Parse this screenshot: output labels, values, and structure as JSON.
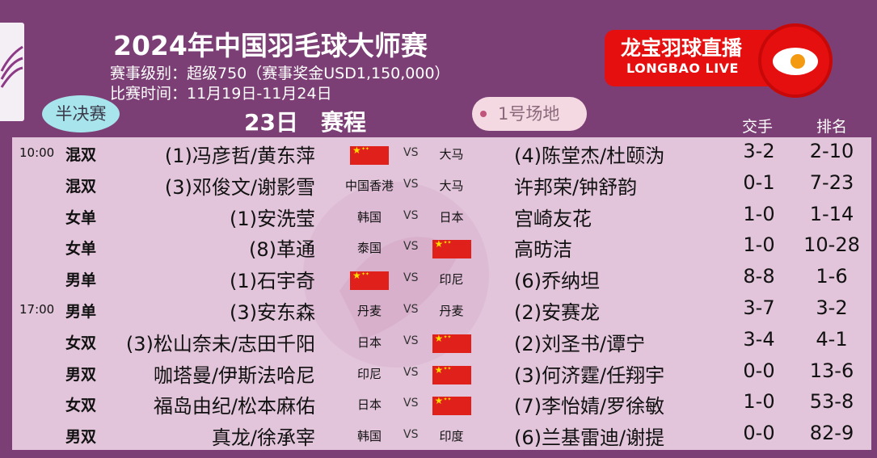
{
  "header": {
    "title": "2024年中国羽毛球大师赛",
    "level_line": "赛事级别：超级750（赛事奖金USD1,150,000）",
    "date_line": "比赛时间：11月19日-11月24日"
  },
  "brand": {
    "cn": "龙宝羽球直播",
    "en": "LONGBAO LIVE",
    "color": "#e60f0f"
  },
  "round_badge": "半决赛",
  "day_title": "23日　赛程",
  "court": "1号场地",
  "columns": {
    "h2h": "交手",
    "rank": "排名"
  },
  "colors": {
    "background": "#7c3f75",
    "panel": "#e2c5da",
    "round_badge": "#a8e4ec",
    "court_badge": "#f4d9e3"
  },
  "matches": [
    {
      "time": "10:00",
      "event": "混双",
      "player1": "(1)冯彦哲/黄东萍",
      "country1": "",
      "flag1": true,
      "vs": "VS",
      "country2": "大马",
      "flag2": false,
      "player2": "(4)陈堂杰/杜颐沩",
      "h2h": "3-2",
      "rank": "2-10"
    },
    {
      "time": "",
      "event": "混双",
      "player1": "(3)邓俊文/谢影雪",
      "country1": "中国香港",
      "flag1": false,
      "vs": "VS",
      "country2": "大马",
      "flag2": false,
      "player2": "许邦荣/钟舒韵",
      "h2h": "0-1",
      "rank": "7-23"
    },
    {
      "time": "",
      "event": "女单",
      "player1": "(1)安洗莹",
      "country1": "韩国",
      "flag1": false,
      "vs": "VS",
      "country2": "日本",
      "flag2": false,
      "player2": "宫崎友花",
      "h2h": "1-0",
      "rank": "1-14"
    },
    {
      "time": "",
      "event": "女单",
      "player1": "(8)革通",
      "country1": "泰国",
      "flag1": false,
      "vs": "VS",
      "country2": "",
      "flag2": true,
      "player2": "高昉洁",
      "h2h": "1-0",
      "rank": "10-28"
    },
    {
      "time": "",
      "event": "男单",
      "player1": "(1)石宇奇",
      "country1": "",
      "flag1": true,
      "vs": "VS",
      "country2": "印尼",
      "flag2": false,
      "player2": "(6)乔纳坦",
      "h2h": "8-8",
      "rank": "1-6"
    },
    {
      "time": "17:00",
      "event": "男单",
      "player1": "(3)安东森",
      "country1": "丹麦",
      "flag1": false,
      "vs": "VS",
      "country2": "丹麦",
      "flag2": false,
      "player2": "(2)安赛龙",
      "h2h": "3-7",
      "rank": "3-2"
    },
    {
      "time": "",
      "event": "女双",
      "player1": "(3)松山奈未/志田千阳",
      "country1": "日本",
      "flag1": false,
      "vs": "VS",
      "country2": "",
      "flag2": true,
      "player2": "(2)刘圣书/谭宁",
      "h2h": "3-4",
      "rank": "4-1"
    },
    {
      "time": "",
      "event": "男双",
      "player1": "咖塔曼/伊斯法哈尼",
      "country1": "印尼",
      "flag1": false,
      "vs": "VS",
      "country2": "",
      "flag2": true,
      "player2": "(3)何济霆/任翔宇",
      "h2h": "0-0",
      "rank": "13-6"
    },
    {
      "time": "",
      "event": "女双",
      "player1": "福岛由纪/松本麻佑",
      "country1": "日本",
      "flag1": false,
      "vs": "VS",
      "country2": "",
      "flag2": true,
      "player2": "(7)李怡婧/罗徐敏",
      "h2h": "1-0",
      "rank": "53-8"
    },
    {
      "time": "",
      "event": "男双",
      "player1": "真龙/徐承宰",
      "country1": "韩国",
      "flag1": false,
      "vs": "VS",
      "country2": "印度",
      "flag2": false,
      "player2": "(6)兰基雷迪/谢提",
      "h2h": "0-0",
      "rank": "82-9"
    }
  ]
}
